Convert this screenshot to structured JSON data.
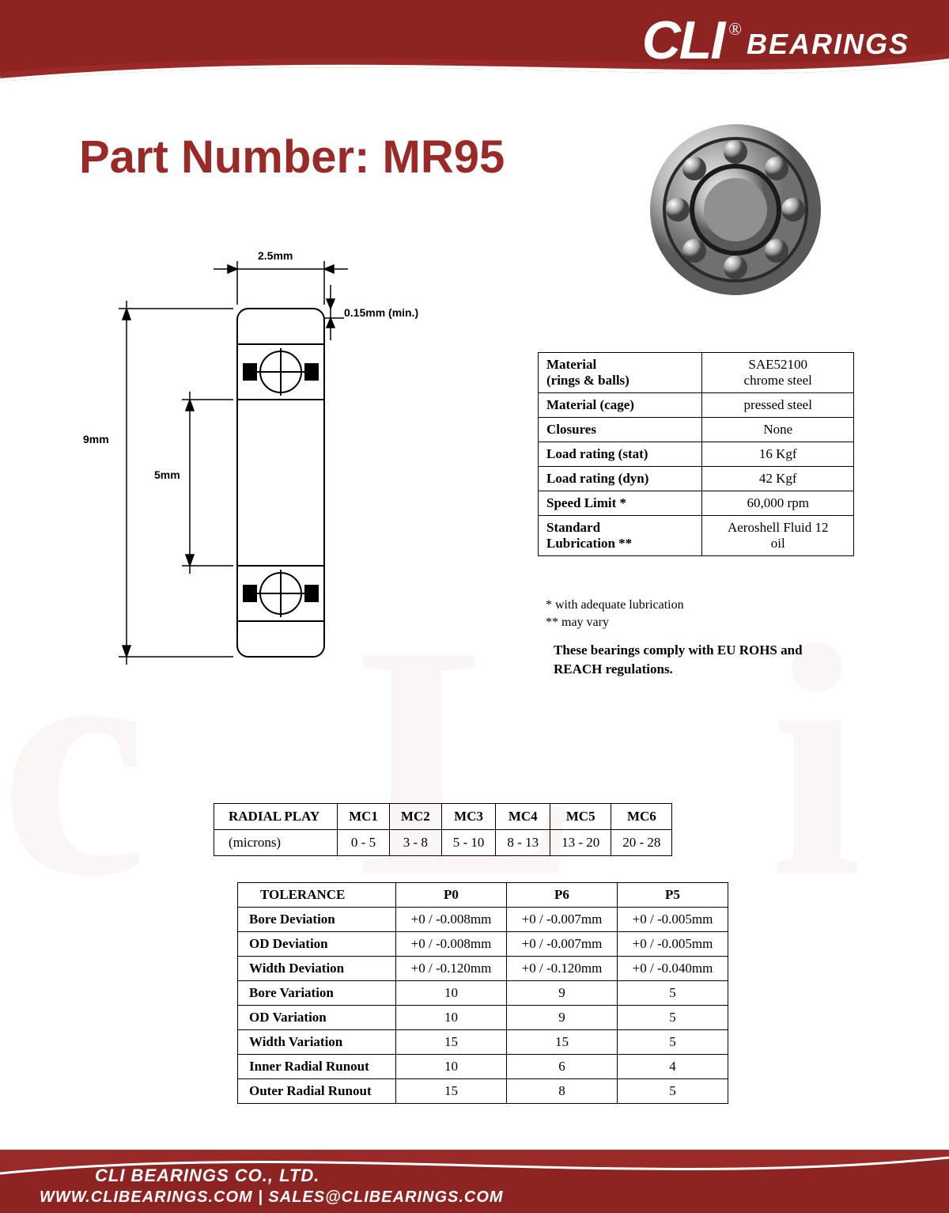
{
  "brand": {
    "cli": "CLI",
    "reg": "®",
    "bearings": "BEARINGS"
  },
  "title": "Part Number: MR95",
  "colors": {
    "brand": "#9a2a28",
    "ink": "#000000",
    "bg": "#ffffff",
    "watermark": "#faf6f5"
  },
  "diagram": {
    "width_mm": "2.5mm",
    "chamfer": "0.15mm (min.)",
    "od": "9mm",
    "bore": "5mm"
  },
  "specs": {
    "rows": [
      {
        "label": "Material\n(rings & balls)",
        "value": "SAE52100\nchrome steel"
      },
      {
        "label": "Material (cage)",
        "value": "pressed steel"
      },
      {
        "label": "Closures",
        "value": "None"
      },
      {
        "label": "Load rating (stat)",
        "value": "16 Kgf"
      },
      {
        "label": "Load rating (dyn)",
        "value": "42 Kgf"
      },
      {
        "label": "Speed Limit *",
        "value": "60,000 rpm"
      },
      {
        "label": "Standard\nLubrication **",
        "value": "Aeroshell Fluid 12\noil"
      }
    ],
    "note1": "  * with adequate lubrication",
    "note2": "** may vary",
    "compliance": "These bearings comply with EU ROHS and REACH  regulations."
  },
  "radial": {
    "header": [
      "RADIAL PLAY",
      "MC1",
      "MC2",
      "MC3",
      "MC4",
      "MC5",
      "MC6"
    ],
    "row": [
      "(microns)",
      "0 - 5",
      "3 - 8",
      "5 - 10",
      "8 - 13",
      "13 - 20",
      "20 - 28"
    ]
  },
  "tolerance": {
    "header": [
      "TOLERANCE",
      "P0",
      "P6",
      "P5"
    ],
    "rows": [
      [
        "Bore Deviation",
        "+0 / -0.008mm",
        "+0 / -0.007mm",
        "+0 / -0.005mm"
      ],
      [
        "OD Deviation",
        "+0 / -0.008mm",
        "+0 / -0.007mm",
        "+0 / -0.005mm"
      ],
      [
        "Width Deviation",
        "+0 / -0.120mm",
        "+0 / -0.120mm",
        "+0 / -0.040mm"
      ],
      [
        "Bore Variation",
        "10",
        "9",
        "5"
      ],
      [
        "OD Variation",
        "10",
        "9",
        "5"
      ],
      [
        "Width Variation",
        "15",
        "15",
        "5"
      ],
      [
        "Inner Radial Runout",
        "10",
        "6",
        "4"
      ],
      [
        "Outer Radial Runout",
        "15",
        "8",
        "5"
      ]
    ]
  },
  "footer": {
    "company": "CLI BEARINGS CO., LTD.",
    "line2": "WWW.CLIBEARINGS.COM   |   SALES@CLIBEARINGS.COM"
  }
}
